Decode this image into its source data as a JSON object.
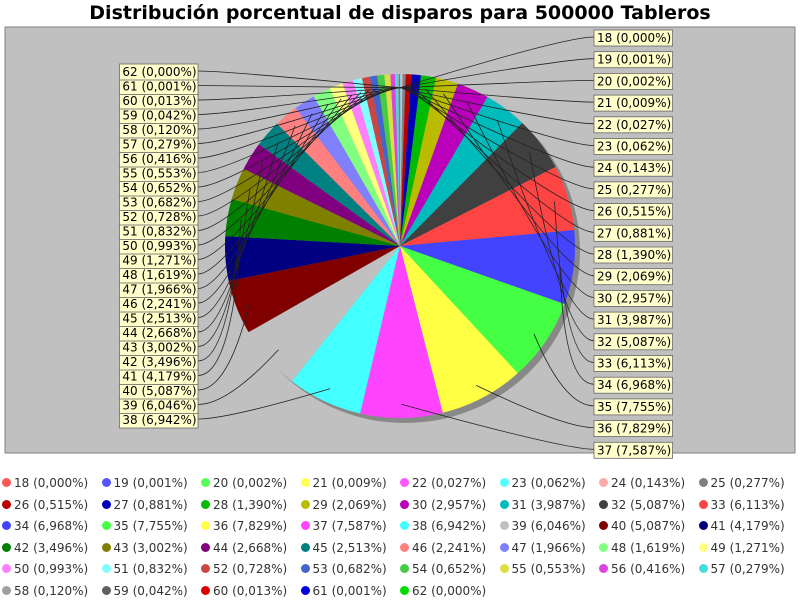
{
  "chart_data": {
    "type": "pie",
    "title": "Distribución porcentual de disparos para 500000 Tableros",
    "categories": [
      "18",
      "19",
      "20",
      "21",
      "22",
      "23",
      "24",
      "25",
      "26",
      "27",
      "28",
      "29",
      "30",
      "31",
      "32",
      "33",
      "34",
      "35",
      "36",
      "37",
      "38",
      "39",
      "40",
      "41",
      "42",
      "43",
      "44",
      "45",
      "46",
      "47",
      "48",
      "49",
      "50",
      "51",
      "52",
      "53",
      "54",
      "55",
      "56",
      "57",
      "58",
      "59",
      "60",
      "61",
      "62"
    ],
    "values": [
      0.0,
      0.001,
      0.002,
      0.009,
      0.027,
      0.062,
      0.143,
      0.277,
      0.515,
      0.881,
      1.39,
      2.069,
      2.957,
      3.987,
      5.087,
      6.113,
      6.968,
      7.755,
      7.829,
      7.587,
      6.942,
      6.046,
      5.087,
      4.179,
      3.496,
      3.002,
      2.668,
      2.513,
      2.241,
      1.966,
      1.619,
      1.271,
      0.993,
      0.832,
      0.728,
      0.682,
      0.652,
      0.553,
      0.416,
      0.279,
      0.12,
      0.042,
      0.013,
      0.001,
      0.0
    ],
    "labels": [
      "18 (0,000%)",
      "19 (0,001%)",
      "20 (0,002%)",
      "21 (0,009%)",
      "22 (0,027%)",
      "23 (0,062%)",
      "24 (0,143%)",
      "25 (0,277%)",
      "26 (0,515%)",
      "27 (0,881%)",
      "28 (1,390%)",
      "29 (2,069%)",
      "30 (2,957%)",
      "31 (3,987%)",
      "32 (5,087%)",
      "33 (6,113%)",
      "34 (6,968%)",
      "35 (7,755%)",
      "36 (7,829%)",
      "37 (7,587%)",
      "38 (6,942%)",
      "39 (6,046%)",
      "40 (5,087%)",
      "41 (4,179%)",
      "42 (3,496%)",
      "43 (3,002%)",
      "44 (2,668%)",
      "45 (2,513%)",
      "46 (2,241%)",
      "47 (1,966%)",
      "48 (1,619%)",
      "49 (1,271%)",
      "50 (0,993%)",
      "51 (0,832%)",
      "52 (0,728%)",
      "53 (0,682%)",
      "54 (0,652%)",
      "55 (0,553%)",
      "56 (0,416%)",
      "57 (0,279%)",
      "58 (0,120%)",
      "59 (0,042%)",
      "60 (0,013%)",
      "61 (0,001%)",
      "62 (0,000%)"
    ],
    "colors": [
      "#ff5555",
      "#5555ff",
      "#55ff55",
      "#ffff55",
      "#ff55ff",
      "#55ffff",
      "#ffaaaa",
      "#808080",
      "#bb0000",
      "#0000bb",
      "#00bb00",
      "#bbbb00",
      "#bb00bb",
      "#00bbbb",
      "#404040",
      "#ff4444",
      "#4444ff",
      "#44ff44",
      "#ffff44",
      "#ff44ff",
      "#44ffff",
      "#c0c0c0",
      "#800000",
      "#000080",
      "#008000",
      "#808000",
      "#800080",
      "#008080",
      "#ff8080",
      "#8080ff",
      "#80ff80",
      "#ffff80",
      "#ff80ff",
      "#80ffff",
      "#cc4444",
      "#4466cc",
      "#44cc44",
      "#dddd44",
      "#dd44dd",
      "#44dddd",
      "#a0a0a0",
      "#606060",
      "#dd0000",
      "#0000dd",
      "#00dd00"
    ],
    "plot_background": "#c0c0c0",
    "label_background": "#ffffcc",
    "legend_position": "bottom"
  }
}
